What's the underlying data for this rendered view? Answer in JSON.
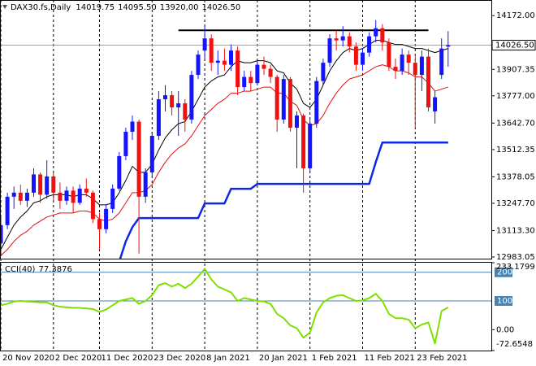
{
  "chart_data": [
    {
      "type": "candlestick",
      "title": "DAX30.fs,Daily",
      "title_values": [
        "14019.75",
        "14095.50",
        "13920,00",
        "14026.50"
      ],
      "categories": [
        "20 Nov 2020",
        null,
        null,
        null,
        null,
        null,
        null,
        null,
        "2 Dec 2020",
        null,
        null,
        null,
        null,
        null,
        null,
        "11 Dec 2020",
        null,
        null,
        null,
        null,
        null,
        null,
        null,
        "23 Dec 2020",
        null,
        null,
        null,
        null,
        null,
        null,
        null,
        "8 Jan 2021",
        null,
        null,
        null,
        null,
        null,
        null,
        null,
        "20 Jan 2021",
        null,
        null,
        null,
        null,
        null,
        null,
        null,
        "1 Feb 2021",
        null,
        null,
        null,
        null,
        null,
        null,
        null,
        "11 Feb 2021",
        null,
        null,
        null,
        null,
        null,
        null,
        null,
        "23 Feb 2021",
        null,
        null,
        null,
        null,
        null
      ],
      "open": [
        13050,
        13140,
        13280,
        13300,
        13260,
        13300,
        13390,
        13290,
        13380,
        13300,
        13260,
        13310,
        13250,
        13320,
        13300,
        13170,
        13120,
        13220,
        13320,
        13480,
        13600,
        13650,
        13280,
        13400,
        13580,
        13760,
        13780,
        13720,
        13740,
        13660,
        13880,
        14000,
        14060,
        13940,
        13950,
        13930,
        14000,
        13820,
        13870,
        13840,
        13930,
        13910,
        13870,
        13660,
        13860,
        13620,
        13680,
        13420,
        13640,
        13850,
        13940,
        14060,
        14050,
        14070,
        14020,
        13930,
        13990,
        14070,
        14110,
        14040,
        13920,
        13900,
        13980,
        13940,
        13880,
        13970,
        13700,
        13880,
        14019.75
      ],
      "high": [
        13180,
        13300,
        13330,
        13340,
        13320,
        13420,
        13400,
        13460,
        13400,
        13350,
        13330,
        13330,
        13340,
        13370,
        13310,
        13200,
        13240,
        13340,
        13500,
        13620,
        13680,
        13660,
        13420,
        13600,
        13800,
        13830,
        13800,
        13800,
        13760,
        13900,
        14000,
        14120,
        14080,
        14000,
        14010,
        14030,
        14020,
        13900,
        13900,
        13950,
        13970,
        13930,
        13880,
        13880,
        13870,
        13700,
        13690,
        13660,
        13870,
        13960,
        14080,
        14100,
        14120,
        14090,
        14040,
        14010,
        14090,
        14150,
        14130,
        14060,
        13960,
        14010,
        14000,
        13980,
        14000,
        14010,
        13800,
        14060,
        14095.5
      ],
      "low": [
        12990,
        13120,
        13220,
        13240,
        13230,
        13280,
        13250,
        13270,
        13260,
        13220,
        13240,
        13200,
        13240,
        13280,
        13150,
        13020,
        13100,
        13200,
        13310,
        13460,
        13560,
        13000,
        13250,
        13380,
        13560,
        13700,
        13680,
        13580,
        13600,
        13640,
        13860,
        13960,
        13900,
        13880,
        13900,
        13900,
        13780,
        13800,
        13800,
        13830,
        13880,
        13840,
        13600,
        13640,
        13600,
        13420,
        13300,
        13400,
        13620,
        13830,
        13920,
        14000,
        14020,
        13990,
        13900,
        13900,
        13970,
        14040,
        14000,
        13900,
        13860,
        13880,
        13880,
        13620,
        13800,
        13700,
        13640,
        13860,
        13920
      ],
      "close": [
        13140,
        13280,
        13300,
        13260,
        13300,
        13390,
        13290,
        13380,
        13300,
        13260,
        13310,
        13250,
        13320,
        13300,
        13170,
        13120,
        13220,
        13320,
        13480,
        13600,
        13650,
        13280,
        13400,
        13580,
        13760,
        13780,
        13720,
        13740,
        13660,
        13880,
        13980,
        14060,
        13940,
        13950,
        13930,
        14000,
        13820,
        13870,
        13840,
        13930,
        13910,
        13870,
        13660,
        13860,
        13620,
        13680,
        13420,
        13640,
        13850,
        13940,
        14060,
        14050,
        14070,
        14020,
        13930,
        13990,
        14070,
        14110,
        14040,
        13920,
        13900,
        13980,
        13940,
        13880,
        13970,
        13720,
        13770,
        14010,
        14026.5
      ],
      "up_color": "#1414ff",
      "down_color": "#f01010",
      "ylim": [
        12975,
        14245
      ],
      "yticks": [
        {
          "value": 14172,
          "label": "14172.00"
        },
        {
          "value": 13907.35,
          "label": "13907.35"
        },
        {
          "value": 13777,
          "label": "13777.00"
        },
        {
          "value": 13642.7,
          "label": "13642.70"
        },
        {
          "value": 13512.35,
          "label": "13512.35"
        },
        {
          "value": 13378.05,
          "label": "13378.05"
        },
        {
          "value": 13247.7,
          "label": "13247.70"
        },
        {
          "value": 13113.3,
          "label": "13113.30"
        },
        {
          "value": 12983.05,
          "label": "12983.05"
        }
      ],
      "current_price": {
        "value": 14026.5,
        "label": "14026.50"
      },
      "lines": [
        {
          "color": "#000000",
          "width": 1,
          "values": [
            13020,
            13080,
            13140,
            13180,
            13210,
            13250,
            13260,
            13280,
            13290,
            13290,
            13290,
            13280,
            13290,
            13290,
            13270,
            13240,
            13240,
            13250,
            13300,
            13360,
            13430,
            13400,
            13400,
            13440,
            13510,
            13570,
            13610,
            13640,
            13650,
            13700,
            13760,
            13820,
            13850,
            13870,
            13880,
            13920,
            13950,
            13940,
            13940,
            13950,
            13950,
            13940,
            13900,
            13890,
            13840,
            13810,
            13740,
            13720,
            13760,
            13830,
            13900,
            13950,
            13990,
            14010,
            14000,
            14010,
            14030,
            14050,
            14050,
            14040,
            14030,
            14030,
            14020,
            14010,
            14010,
            14000,
            13990,
            14000,
            14010
          ]
        },
        {
          "color": "#e01010",
          "width": 1,
          "values": [
            12990,
            13020,
            13060,
            13090,
            13110,
            13140,
            13160,
            13180,
            13190,
            13200,
            13200,
            13200,
            13210,
            13210,
            13200,
            13170,
            13160,
            13170,
            13200,
            13250,
            13300,
            13300,
            13310,
            13340,
            13400,
            13450,
            13490,
            13520,
            13540,
            13580,
            13630,
            13680,
            13710,
            13740,
            13760,
            13790,
            13790,
            13800,
            13800,
            13810,
            13820,
            13820,
            13790,
            13790,
            13750,
            13730,
            13660,
            13630,
            13640,
            13680,
            13740,
            13790,
            13830,
            13860,
            13870,
            13880,
            13900,
            13920,
            13930,
            13920,
            13900,
            13900,
            13890,
            13870,
            13870,
            13840,
            13800,
            13810,
            13820
          ]
        },
        {
          "color": "#0a28e6",
          "width": 2.5,
          "values": [
            null,
            null,
            null,
            null,
            null,
            null,
            null,
            null,
            null,
            null,
            null,
            null,
            null,
            null,
            null,
            null,
            null,
            null,
            12960,
            13060,
            13130,
            13175,
            13175,
            13175,
            13175,
            13175,
            13175,
            13175,
            13175,
            13175,
            13175,
            13247,
            13247,
            13247,
            13247,
            13319,
            13319,
            13319,
            13319,
            13343,
            13343,
            13343,
            13343,
            13343,
            13343,
            13343,
            13343,
            13343,
            13343,
            13343,
            13343,
            13343,
            13343,
            13343,
            13343,
            13343,
            13343,
            13450,
            13547,
            13547,
            13547,
            13547,
            13547,
            13547,
            13547,
            13547,
            13547,
            13547,
            13547
          ]
        },
        {
          "color": "#000000",
          "width": 2,
          "values": [
            null,
            null,
            null,
            null,
            null,
            null,
            null,
            null,
            null,
            null,
            null,
            null,
            null,
            null,
            null,
            null,
            null,
            null,
            null,
            null,
            null,
            null,
            null,
            null,
            null,
            null,
            null,
            14100,
            14100,
            14100,
            14100,
            14100,
            14100,
            14100,
            14100,
            14100,
            14100,
            14100,
            14100,
            14100,
            14100,
            14100,
            14100,
            14100,
            14100,
            14100,
            14100,
            14100,
            14100,
            14100,
            14100,
            14100,
            14100,
            14100,
            14100,
            14100,
            14100,
            14100,
            14100,
            14100,
            14100,
            14100,
            14100,
            14100,
            14100,
            14100,
            null,
            null,
            null
          ]
        }
      ]
    },
    {
      "type": "line",
      "name": "CCI(40)",
      "color": "#7ee000",
      "values": [
        85,
        90,
        98,
        100,
        98,
        97,
        95,
        95,
        85,
        80,
        78,
        76,
        76,
        74,
        72,
        62,
        70,
        85,
        100,
        105,
        110,
        90,
        100,
        120,
        155,
        162,
        150,
        160,
        145,
        160,
        185,
        212,
        175,
        150,
        140,
        130,
        100,
        110,
        105,
        100,
        98,
        90,
        55,
        40,
        15,
        5,
        -28,
        -10,
        60,
        95,
        110,
        118,
        120,
        110,
        100,
        102,
        110,
        125,
        100,
        55,
        40,
        40,
        35,
        5,
        18,
        25,
        -48,
        65,
        77.3876
      ],
      "ylim": [
        -72.6548,
        233.1799
      ],
      "yticks": [
        233.1799,
        {
          "value": 0,
          "label": "0.00"
        },
        -72.6548
      ],
      "levels": [
        200,
        100
      ],
      "level_color": "#4682b4"
    }
  ]
}
